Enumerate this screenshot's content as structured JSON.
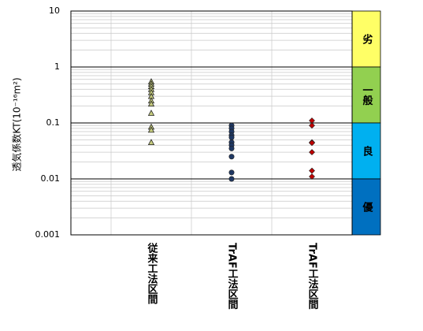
{
  "chart_data": {
    "type": "scatter",
    "ylabel": "透気係数KT(10⁻¹⁶m²)",
    "categories": [
      "従来工法区間",
      "TrAF工法区間",
      "TrAF工法区間"
    ],
    "ylim": [
      0.001,
      10
    ],
    "yticks": [
      0.001,
      0.01,
      0.1,
      1,
      10
    ],
    "log_scale": true,
    "grid": true,
    "minor_grid": true,
    "series": [
      {
        "marker": "triangle",
        "color": "#c6cc7e",
        "values": [
          0.55,
          0.5,
          0.45,
          0.4,
          0.35,
          0.3,
          0.25,
          0.22,
          0.15,
          0.085,
          0.075,
          0.045
        ]
      },
      {
        "marker": "circle",
        "color": "#1f3864",
        "values": [
          0.09,
          0.08,
          0.07,
          0.06,
          0.055,
          0.045,
          0.04,
          0.035,
          0.025,
          0.013,
          0.01
        ]
      },
      {
        "marker": "diamond",
        "color": "#c00000",
        "values": [
          0.11,
          0.09,
          0.045,
          0.044,
          0.03,
          0.014,
          0.011
        ]
      }
    ],
    "bands": [
      {
        "label": "劣",
        "from": 1,
        "to": 10,
        "color": "#ffff66"
      },
      {
        "label": "一般",
        "from": 0.1,
        "to": 1,
        "color": "#92d050"
      },
      {
        "label": "良",
        "from": 0.01,
        "to": 0.1,
        "color": "#00b0f0"
      },
      {
        "label": "優",
        "from": 0.001,
        "to": 0.01,
        "color": "#0070c0"
      }
    ]
  }
}
